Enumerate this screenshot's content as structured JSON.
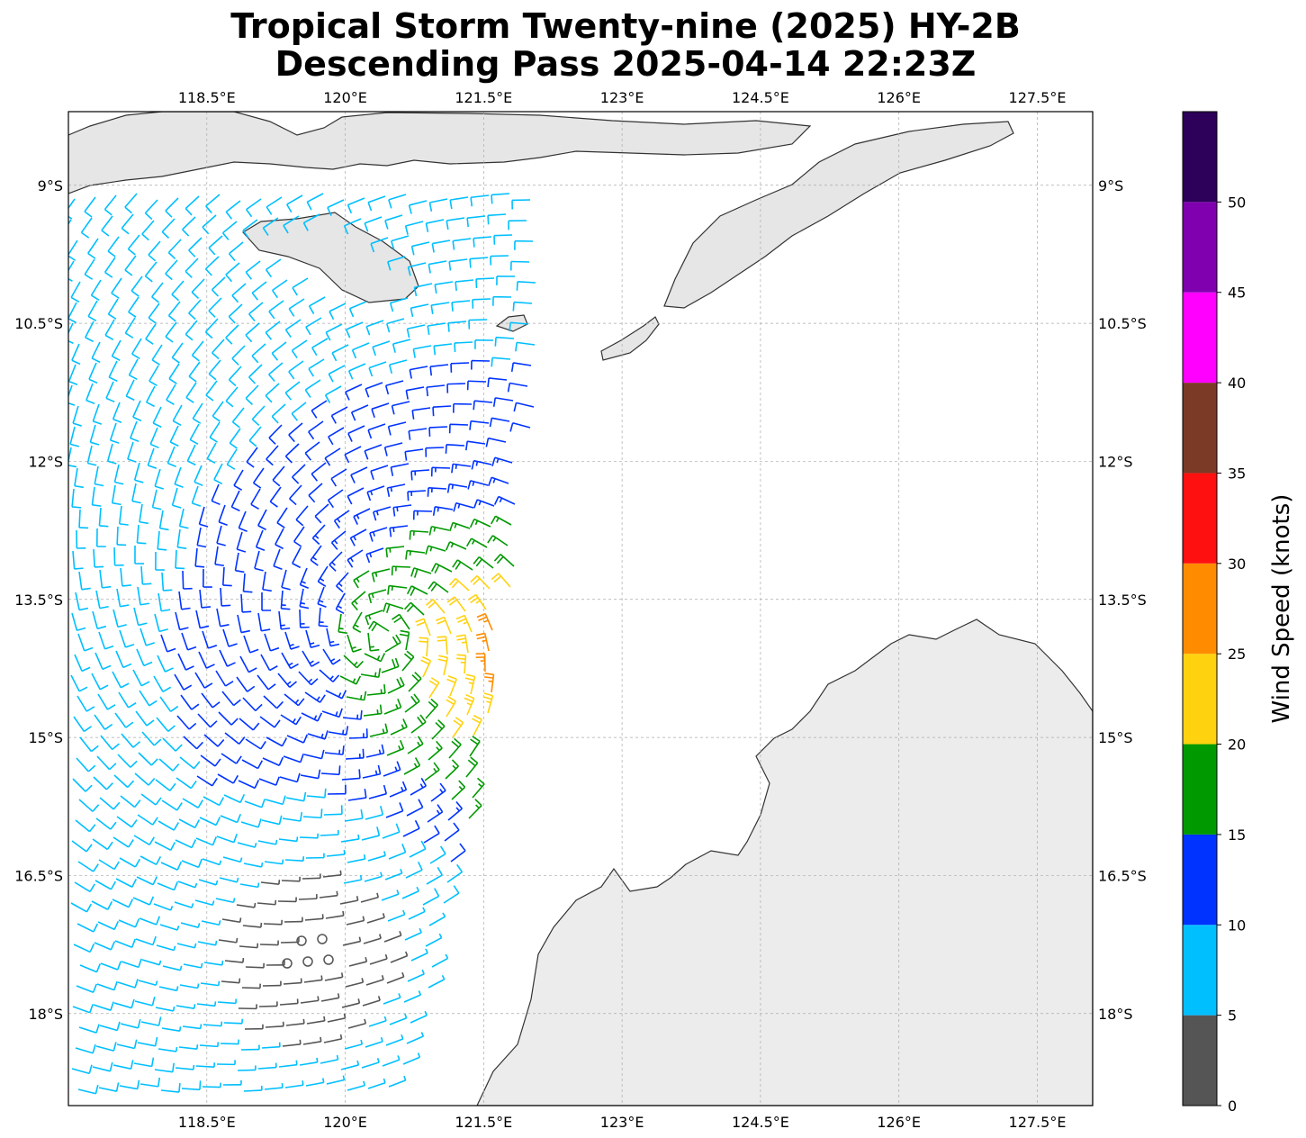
{
  "title": {
    "line1": "Tropical Storm Twenty-nine (2025) HY-2B",
    "line2": "Descending Pass 2025-04-14 22:23Z"
  },
  "map": {
    "extent": {
      "lon_min": 117.0,
      "lon_max": 128.1,
      "lat_min": -19.0,
      "lat_max": -8.2
    },
    "lon_ticks": [
      118.5,
      120.0,
      121.5,
      123.0,
      124.5,
      126.0,
      127.5
    ],
    "lon_tick_labels": [
      "118.5°E",
      "120°E",
      "121.5°E",
      "123°E",
      "124.5°E",
      "126°E",
      "127.5°E"
    ],
    "lat_ticks": [
      -9.0,
      -10.5,
      -12.0,
      -13.5,
      -15.0,
      -16.5,
      -18.0
    ],
    "lat_tick_labels": [
      "9°S",
      "10.5°S",
      "12°S",
      "13.5°S",
      "15°S",
      "16.5°S",
      "18°S"
    ],
    "gridlines": true,
    "land_features": [
      "Sumbawa",
      "Flores",
      "Sumba",
      "Savu",
      "Rote",
      "Timor",
      "Northwest Australia (Kimberley)"
    ],
    "land_color": "#e8e8e8",
    "coast_color": "#333333"
  },
  "colorbar": {
    "label": "Wind Speed (knots)",
    "ticks": [
      0,
      5,
      10,
      15,
      20,
      25,
      30,
      35,
      40,
      45,
      50
    ],
    "bins": [
      {
        "min": 0,
        "max": 5,
        "color": "#555555"
      },
      {
        "min": 5,
        "max": 10,
        "color": "#00bfff"
      },
      {
        "min": 10,
        "max": 15,
        "color": "#0033ff"
      },
      {
        "min": 15,
        "max": 20,
        "color": "#009900"
      },
      {
        "min": 20,
        "max": 25,
        "color": "#ffd20f"
      },
      {
        "min": 25,
        "max": 30,
        "color": "#ff8c00"
      },
      {
        "min": 30,
        "max": 35,
        "color": "#ff1010"
      },
      {
        "min": 35,
        "max": 40,
        "color": "#7b3a26"
      },
      {
        "min": 40,
        "max": 45,
        "color": "#ff00ff"
      },
      {
        "min": 45,
        "max": 50,
        "color": "#8000b0"
      },
      {
        "min": 50,
        "max": 55,
        "color": "#2d005a"
      }
    ]
  },
  "chart_data": {
    "type": "wind_barbs",
    "units": "knots",
    "storm_circulation_center": {
      "lon": 120.4,
      "lat": -13.9
    },
    "swath_east_edge_lon": 122.2,
    "max_wind_kt": 33,
    "max_wind_location": {
      "lon": 122.0,
      "lat": -14.3
    },
    "calm_region_center": {
      "lon": 119.6,
      "lat": -17.3
    }
  }
}
